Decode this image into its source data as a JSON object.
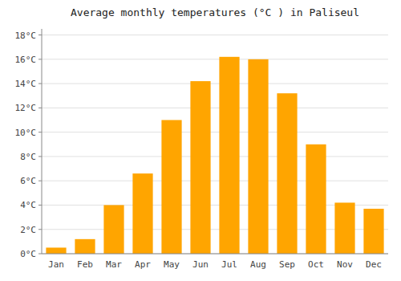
{
  "chart_data": {
    "type": "bar",
    "title": "Average monthly temperatures (°C ) in Paliseul",
    "categories": [
      "Jan",
      "Feb",
      "Mar",
      "Apr",
      "May",
      "Jun",
      "Jul",
      "Aug",
      "Sep",
      "Oct",
      "Nov",
      "Dec"
    ],
    "values": [
      0.5,
      1.2,
      4.0,
      6.6,
      11.0,
      14.2,
      16.2,
      16.0,
      13.2,
      9.0,
      4.2,
      3.7
    ],
    "color": "#FFA500",
    "ylim": [
      0,
      18.5
    ],
    "yticks": [
      {
        "value": 0,
        "label": "0°C"
      },
      {
        "value": 2,
        "label": "2°C"
      },
      {
        "value": 4,
        "label": "4°C"
      },
      {
        "value": 6,
        "label": "6°C"
      },
      {
        "value": 8,
        "label": "8°C"
      },
      {
        "value": 10,
        "label": "10°C"
      },
      {
        "value": 12,
        "label": "12°C"
      },
      {
        "value": 14,
        "label": "14°C"
      },
      {
        "value": 16,
        "label": "16°C"
      },
      {
        "value": 18,
        "label": "18°C"
      }
    ],
    "grid": true
  }
}
